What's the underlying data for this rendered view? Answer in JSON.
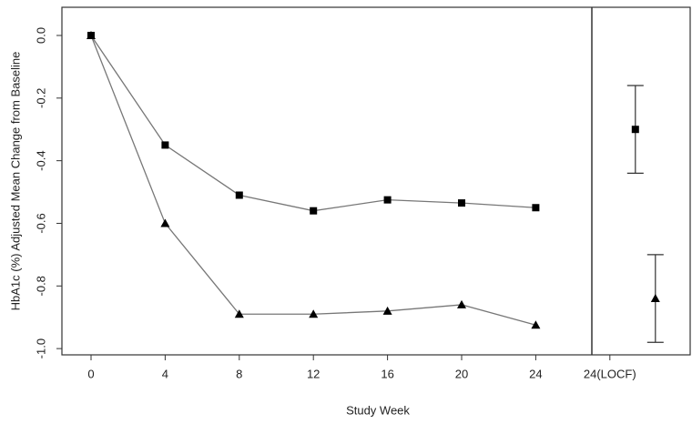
{
  "chart_data": {
    "type": "line",
    "xlabel": "Study Week",
    "ylabel": "HbA1c (%) Adjusted Mean Change from Baseline",
    "categories": [
      "0",
      "4",
      "8",
      "12",
      "16",
      "20",
      "24",
      "24(LOCF)"
    ],
    "series": [
      {
        "marker": "square",
        "color": "#000000",
        "values": [
          0,
          -0.35,
          -0.51,
          -0.56,
          -0.525,
          -0.535,
          -0.55,
          -0.3
        ],
        "locf_error": 0.14
      },
      {
        "marker": "triangle",
        "color": "#000000",
        "values": [
          0,
          -0.6,
          -0.89,
          -0.89,
          -0.88,
          -0.86,
          -0.925,
          -0.84
        ],
        "locf_error": 0.14
      }
    ],
    "ylim": [
      -1.02,
      0.09
    ],
    "yticks": [
      {
        "value": 0,
        "label": "0.0"
      },
      -0.2,
      -0.4,
      -0.6,
      -0.8,
      {
        "value": -1,
        "label": "-1.0"
      }
    ]
  }
}
